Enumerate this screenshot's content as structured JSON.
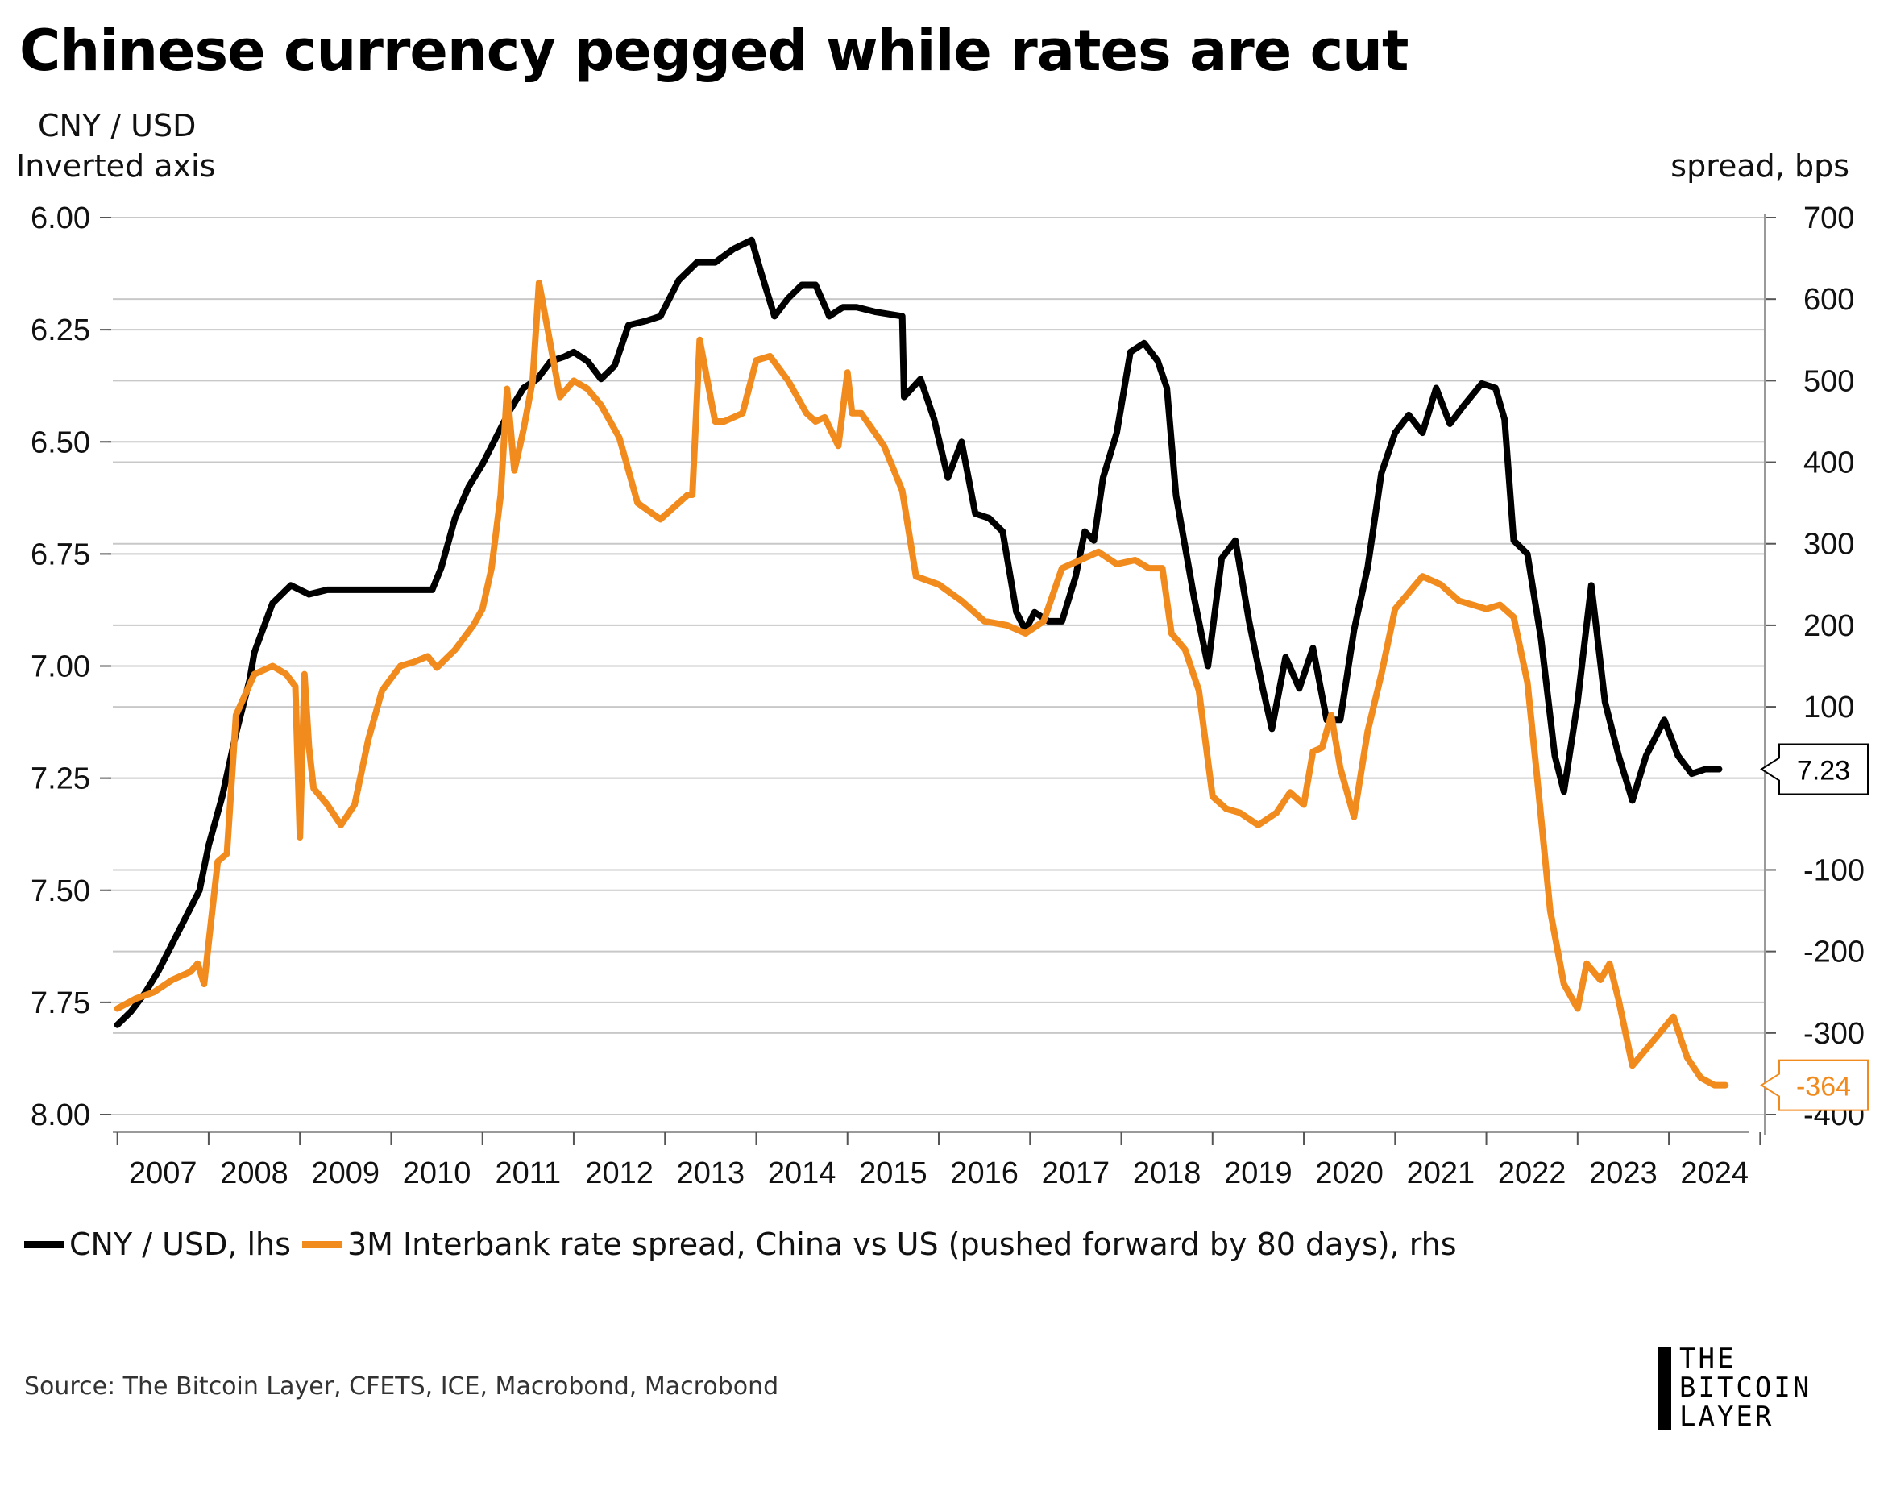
{
  "title": "Chinese currency pegged while rates are cut",
  "lhs_label_1": "CNY / USD",
  "lhs_label_2": "Inverted axis",
  "rhs_label": "spread, bps",
  "legend": [
    {
      "label": "CNY / USD, lhs",
      "color": "#000000"
    },
    {
      "label": "3M Interbank rate spread, China vs US  (pushed forward by 80 days), rhs",
      "color": "#f28b1d"
    }
  ],
  "source": "Source: The Bitcoin Layer, CFETS, ICE, Macrobond, Macrobond",
  "logo": {
    "line1": "THE",
    "line2": "BITCOIN",
    "line3": "LAYER"
  },
  "chart_data": {
    "type": "line",
    "title": "Chinese currency pegged while rates are cut",
    "x_ticks": [
      "2007",
      "2008",
      "2009",
      "2010",
      "2011",
      "2012",
      "2013",
      "2014",
      "2015",
      "2016",
      "2017",
      "2018",
      "2019",
      "2020",
      "2021",
      "2022",
      "2023",
      "2024"
    ],
    "xlim": [
      2006.95,
      2025.05
    ],
    "y_left": {
      "label": "CNY / USD",
      "note": "Inverted axis",
      "inverted": true,
      "ticks": [
        "6.00",
        "6.25",
        "6.50",
        "6.75",
        "7.00",
        "7.25",
        "7.50",
        "7.75",
        "8.00"
      ],
      "ylim": [
        6.0,
        8.0
      ]
    },
    "y_right": {
      "label": "spread, bps",
      "ticks": [
        "700",
        "600",
        "500",
        "400",
        "300",
        "200",
        "100",
        "-100",
        "-200",
        "-300",
        "-400"
      ],
      "ylim": [
        -400,
        700
      ]
    },
    "grid": true,
    "legend_position": "bottom",
    "series": [
      {
        "name": "CNY / USD, lhs",
        "axis": "left",
        "color": "#000000",
        "last_label": "7.23",
        "x": [
          2007.0,
          2007.15,
          2007.3,
          2007.45,
          2007.6,
          2007.75,
          2007.9,
          2008.0,
          2008.15,
          2008.3,
          2008.45,
          2008.5,
          2008.7,
          2008.9,
          2009.1,
          2009.3,
          2009.5,
          2009.7,
          2009.9,
          2010.1,
          2010.3,
          2010.45,
          2010.55,
          2010.7,
          2010.85,
          2011.0,
          2011.15,
          2011.3,
          2011.45,
          2011.6,
          2011.75,
          2011.9,
          2012.0,
          2012.15,
          2012.3,
          2012.45,
          2012.6,
          2012.8,
          2012.95,
          2013.15,
          2013.35,
          2013.55,
          2013.75,
          2013.95,
          2014.05,
          2014.2,
          2014.35,
          2014.5,
          2014.65,
          2014.8,
          2014.95,
          2015.1,
          2015.3,
          2015.6,
          2015.62,
          2015.8,
          2015.95,
          2016.1,
          2016.25,
          2016.4,
          2016.55,
          2016.7,
          2016.85,
          2016.95,
          2017.05,
          2017.2,
          2017.35,
          2017.5,
          2017.6,
          2017.7,
          2017.8,
          2017.95,
          2018.1,
          2018.25,
          2018.4,
          2018.5,
          2018.6,
          2018.8,
          2018.95,
          2019.1,
          2019.25,
          2019.4,
          2019.55,
          2019.65,
          2019.8,
          2019.95,
          2020.1,
          2020.25,
          2020.4,
          2020.55,
          2020.7,
          2020.85,
          2021.0,
          2021.15,
          2021.3,
          2021.45,
          2021.6,
          2021.75,
          2021.95,
          2022.1,
          2022.2,
          2022.3,
          2022.45,
          2022.6,
          2022.75,
          2022.85,
          2023.0,
          2023.15,
          2023.3,
          2023.45,
          2023.6,
          2023.75,
          2023.95,
          2024.1,
          2024.25,
          2024.4,
          2024.55
        ],
        "values": [
          7.8,
          7.77,
          7.73,
          7.68,
          7.62,
          7.56,
          7.5,
          7.4,
          7.29,
          7.15,
          7.03,
          6.97,
          6.86,
          6.82,
          6.84,
          6.83,
          6.83,
          6.83,
          6.83,
          6.83,
          6.83,
          6.83,
          6.78,
          6.67,
          6.6,
          6.55,
          6.49,
          6.43,
          6.38,
          6.36,
          6.32,
          6.31,
          6.3,
          6.32,
          6.36,
          6.33,
          6.24,
          6.23,
          6.22,
          6.14,
          6.1,
          6.1,
          6.07,
          6.05,
          6.12,
          6.22,
          6.18,
          6.15,
          6.15,
          6.22,
          6.2,
          6.2,
          6.21,
          6.22,
          6.4,
          6.36,
          6.45,
          6.58,
          6.5,
          6.66,
          6.67,
          6.7,
          6.88,
          6.92,
          6.88,
          6.9,
          6.9,
          6.8,
          6.7,
          6.72,
          6.58,
          6.48,
          6.3,
          6.28,
          6.32,
          6.38,
          6.62,
          6.85,
          7.0,
          6.76,
          6.72,
          6.9,
          7.05,
          7.14,
          6.98,
          7.05,
          6.96,
          7.12,
          7.12,
          6.92,
          6.78,
          6.57,
          6.48,
          6.44,
          6.48,
          6.38,
          6.46,
          6.42,
          6.37,
          6.38,
          6.45,
          6.72,
          6.75,
          6.94,
          7.2,
          7.28,
          7.08,
          6.82,
          7.08,
          7.2,
          7.3,
          7.2,
          7.12,
          7.2,
          7.24,
          7.23,
          7.23
        ]
      },
      {
        "name": "3M Interbank rate spread, China vs US  (pushed forward by 80 days), rhs",
        "axis": "right",
        "color": "#f28b1d",
        "last_label": "-364",
        "x": [
          2007.0,
          2007.2,
          2007.4,
          2007.6,
          2007.8,
          2007.88,
          2007.95,
          2008.0,
          2008.1,
          2008.2,
          2008.3,
          2008.5,
          2008.7,
          2008.85,
          2008.95,
          2009.0,
          2009.05,
          2009.1,
          2009.15,
          2009.3,
          2009.45,
          2009.6,
          2009.75,
          2009.9,
          2010.1,
          2010.25,
          2010.4,
          2010.5,
          2010.7,
          2010.9,
          2011.0,
          2011.1,
          2011.2,
          2011.27,
          2011.35,
          2011.45,
          2011.55,
          2011.62,
          2011.72,
          2011.85,
          2012.0,
          2012.15,
          2012.3,
          2012.5,
          2012.7,
          2012.95,
          2013.25,
          2013.3,
          2013.38,
          2013.55,
          2013.65,
          2013.85,
          2014.0,
          2014.15,
          2014.35,
          2014.55,
          2014.65,
          2014.75,
          2014.9,
          2015.0,
          2015.05,
          2015.15,
          2015.4,
          2015.6,
          2015.75,
          2016.0,
          2016.25,
          2016.5,
          2016.75,
          2016.95,
          2017.15,
          2017.35,
          2017.55,
          2017.75,
          2017.95,
          2018.15,
          2018.3,
          2018.45,
          2018.55,
          2018.7,
          2018.85,
          2019.0,
          2019.15,
          2019.3,
          2019.5,
          2019.7,
          2019.85,
          2020.0,
          2020.1,
          2020.2,
          2020.3,
          2020.4,
          2020.55,
          2020.7,
          2020.85,
          2021.0,
          2021.15,
          2021.3,
          2021.5,
          2021.7,
          2021.85,
          2022.0,
          2022.15,
          2022.3,
          2022.45,
          2022.55,
          2022.7,
          2022.85,
          2023.0,
          2023.1,
          2023.25,
          2023.35,
          2023.45,
          2023.6,
          2023.75,
          2023.9,
          2024.05,
          2024.2,
          2024.35,
          2024.5,
          2024.62
        ],
        "values": [
          -270,
          -258,
          -250,
          -235,
          -225,
          -215,
          -240,
          -190,
          -90,
          -80,
          90,
          140,
          150,
          140,
          125,
          -60,
          140,
          50,
          0,
          -20,
          -45,
          -20,
          60,
          120,
          150,
          155,
          162,
          148,
          170,
          200,
          220,
          270,
          360,
          490,
          390,
          440,
          500,
          620,
          560,
          480,
          500,
          490,
          470,
          430,
          350,
          330,
          360,
          360,
          550,
          450,
          450,
          460,
          525,
          530,
          500,
          460,
          450,
          455,
          420,
          510,
          460,
          460,
          420,
          365,
          260,
          250,
          230,
          205,
          200,
          190,
          205,
          270,
          280,
          290,
          275,
          280,
          270,
          270,
          190,
          170,
          120,
          -10,
          -25,
          -30,
          -45,
          -30,
          -5,
          -20,
          45,
          50,
          90,
          25,
          -35,
          70,
          140,
          220,
          240,
          260,
          250,
          230,
          225,
          220,
          225,
          210,
          130,
          20,
          -150,
          -240,
          -270,
          -215,
          -235,
          -215,
          -260,
          -340,
          -320,
          -300,
          -280,
          -330,
          -355,
          -364,
          -364
        ]
      }
    ]
  }
}
